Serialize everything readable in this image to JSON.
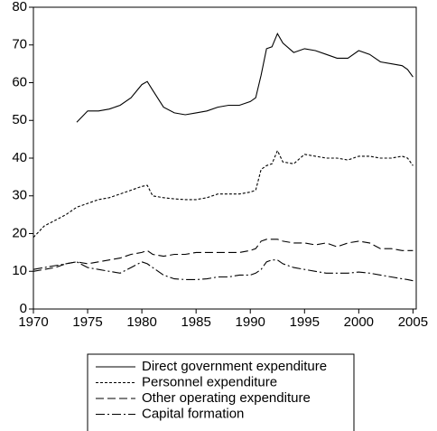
{
  "chart_data": {
    "type": "line",
    "x": [
      1970,
      1971,
      1972,
      1973,
      1974,
      1975,
      1976,
      1977,
      1978,
      1979,
      1980,
      1980.5,
      1981,
      1982,
      1983,
      1984,
      1985,
      1986,
      1987,
      1988,
      1989,
      1990,
      1990.5,
      1991,
      1991.5,
      1992,
      1992.5,
      1993,
      1994,
      1995,
      1996,
      1997,
      1998,
      1999,
      2000,
      2001,
      2002,
      2003,
      2004,
      2004.5,
      2005
    ],
    "series": [
      {
        "name": "Direct government expenditure",
        "color": "#000000",
        "dash": "none",
        "values": [
          null,
          null,
          null,
          null,
          49.5,
          52.5,
          52.5,
          53,
          54,
          56,
          59.5,
          60.3,
          58,
          53.5,
          52,
          51.5,
          52,
          52.5,
          53.5,
          54,
          54,
          55,
          56,
          62,
          69,
          69.5,
          73,
          70.5,
          68,
          69,
          68.5,
          67.5,
          66.5,
          66.5,
          68.5,
          67.5,
          65.5,
          65,
          64.5,
          63.5,
          61.5
        ]
      },
      {
        "name": "Personnel expenditure",
        "color": "#000000",
        "dash": "3,2",
        "values": [
          19,
          22,
          23.5,
          25,
          27,
          28,
          29,
          29.5,
          30.5,
          31.5,
          32.5,
          32.8,
          30,
          29.5,
          29.2,
          29,
          29,
          29.5,
          30.5,
          30.5,
          30.5,
          31,
          31.5,
          37,
          38,
          38.5,
          42,
          39,
          38.5,
          41,
          40.5,
          40,
          40,
          39.5,
          40.5,
          40.5,
          40,
          40,
          40.5,
          40,
          38
        ]
      },
      {
        "name": "Other operating expenditure",
        "color": "#000000",
        "dash": "9,4",
        "values": [
          10,
          10.5,
          11,
          12,
          12.5,
          12,
          12.5,
          13,
          13.5,
          14.5,
          15,
          15.5,
          14.5,
          14,
          14.5,
          14.5,
          15,
          15,
          15,
          15,
          15,
          15.5,
          16,
          18,
          18.5,
          18.5,
          18.5,
          18,
          17.5,
          17.5,
          17,
          17.5,
          16.5,
          17.5,
          18,
          17.5,
          16,
          16,
          15.5,
          15.5,
          15.5
        ]
      },
      {
        "name": "Capital formation",
        "color": "#000000",
        "dash": "10,3,2,3",
        "values": [
          10.5,
          11,
          11.5,
          12,
          12.5,
          11,
          10.5,
          10,
          9.5,
          11,
          12.5,
          12,
          11,
          9,
          8,
          7.8,
          7.8,
          8,
          8.5,
          8.5,
          9,
          9,
          9.5,
          10.5,
          12.5,
          13,
          13,
          12,
          11,
          10.5,
          10,
          9.5,
          9.5,
          9.5,
          9.8,
          9.5,
          9,
          8.5,
          8,
          7.8,
          7.5
        ]
      }
    ],
    "xlim": [
      1970,
      2005.3
    ],
    "ylim": [
      0,
      80
    ],
    "xticks": [
      1970,
      1975,
      1980,
      1985,
      1990,
      1995,
      2000,
      2005
    ],
    "yticks": [
      0,
      10,
      20,
      30,
      40,
      50,
      60,
      70,
      80
    ],
    "legend": "bottom"
  }
}
